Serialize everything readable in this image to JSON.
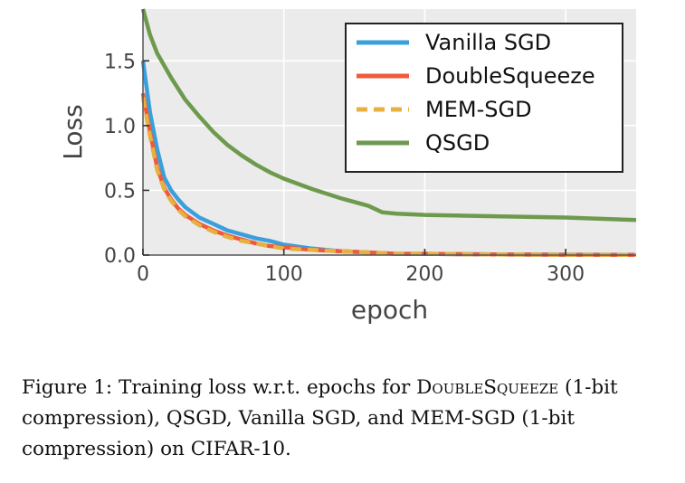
{
  "chart_data": {
    "type": "line",
    "title": "",
    "xlabel": "epoch",
    "ylabel": "Loss",
    "xlim": [
      0,
      350
    ],
    "ylim": [
      0,
      1.9
    ],
    "xticks": [
      0,
      100,
      200,
      300
    ],
    "yticks": [
      0.0,
      0.5,
      1.0,
      1.5
    ],
    "xtick_labels": [
      "0",
      "100",
      "200",
      "300"
    ],
    "ytick_labels": [
      "0.0",
      "0.5",
      "1.0",
      "1.5"
    ],
    "legend_position": "top-right",
    "series": [
      {
        "name": "Vanilla SGD",
        "color": "#3aa0dc",
        "style": "solid",
        "x": [
          0,
          5,
          10,
          15,
          20,
          25,
          30,
          40,
          50,
          60,
          70,
          80,
          90,
          100,
          120,
          140,
          160,
          180,
          200,
          250,
          300,
          350
        ],
        "y": [
          1.5,
          1.1,
          0.82,
          0.6,
          0.5,
          0.43,
          0.37,
          0.29,
          0.24,
          0.19,
          0.16,
          0.13,
          0.11,
          0.08,
          0.05,
          0.03,
          0.02,
          0.01,
          0.01,
          0.005,
          0.003,
          0.002
        ]
      },
      {
        "name": "DoubleSqueeze",
        "color": "#f05a3c",
        "style": "solid",
        "x": [
          0,
          5,
          10,
          15,
          20,
          25,
          30,
          40,
          50,
          60,
          70,
          80,
          90,
          100,
          120,
          140,
          160,
          180,
          200,
          250,
          300,
          350
        ],
        "y": [
          1.25,
          0.95,
          0.68,
          0.52,
          0.43,
          0.36,
          0.31,
          0.24,
          0.19,
          0.15,
          0.12,
          0.09,
          0.07,
          0.06,
          0.04,
          0.03,
          0.02,
          0.01,
          0.01,
          0.005,
          0.003,
          0.002
        ]
      },
      {
        "name": "MEM-SGD",
        "color": "#e8b040",
        "style": "dashed",
        "x": [
          0,
          5,
          10,
          15,
          20,
          25,
          30,
          40,
          50,
          60,
          70,
          80,
          90,
          100,
          120,
          140,
          160,
          180,
          200,
          250,
          300,
          350
        ],
        "y": [
          1.22,
          0.92,
          0.66,
          0.51,
          0.42,
          0.35,
          0.3,
          0.23,
          0.18,
          0.14,
          0.11,
          0.09,
          0.07,
          0.05,
          0.04,
          0.03,
          0.02,
          0.01,
          0.01,
          0.005,
          0.003,
          0.002
        ]
      },
      {
        "name": "QSGD",
        "color": "#6e9a4e",
        "style": "solid",
        "x": [
          0,
          5,
          10,
          20,
          30,
          40,
          50,
          60,
          70,
          80,
          90,
          100,
          120,
          140,
          160,
          170,
          180,
          200,
          250,
          300,
          350
        ],
        "y": [
          1.9,
          1.7,
          1.56,
          1.37,
          1.2,
          1.07,
          0.95,
          0.85,
          0.77,
          0.7,
          0.64,
          0.59,
          0.51,
          0.44,
          0.38,
          0.33,
          0.32,
          0.31,
          0.3,
          0.29,
          0.27
        ]
      }
    ]
  },
  "caption": {
    "prefix": "Figure 1: Training loss w.r.t. epochs for ",
    "method_name": "DoubleSqueeze",
    "suffix": " (1-bit compression), QSGD, Vanilla SGD, and MEM-SGD (1-bit compression) on CIFAR-10."
  }
}
